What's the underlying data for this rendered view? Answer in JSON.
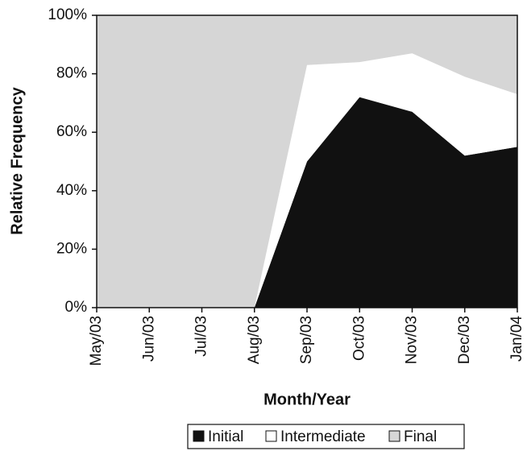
{
  "chart_data": {
    "type": "area",
    "stacked": true,
    "x_label": "Month/Year",
    "y_label": "Relative Frequency",
    "categories": [
      "May/03",
      "Jun/03",
      "Jul/03",
      "Aug/03",
      "Sep/03",
      "Oct/03",
      "Nov/03",
      "Dec/03",
      "Jan/04"
    ],
    "series": [
      {
        "name": "Initial",
        "color": "#111111",
        "values": [
          0,
          0,
          0,
          0,
          50,
          72,
          67,
          52,
          55
        ]
      },
      {
        "name": "Intermediate",
        "color": "#ffffff",
        "values": [
          0,
          0,
          0,
          0,
          33,
          12,
          20,
          27,
          18
        ]
      },
      {
        "name": "Final",
        "color": "#d6d6d6",
        "values": [
          100,
          100,
          100,
          100,
          17,
          16,
          13,
          21,
          27
        ]
      }
    ],
    "ylim": [
      0,
      100
    ],
    "yticks": [
      {
        "value": 0,
        "label": "0%"
      },
      {
        "value": 20,
        "label": "20%"
      },
      {
        "value": 40,
        "label": "40%"
      },
      {
        "value": 60,
        "label": "60%"
      },
      {
        "value": 80,
        "label": "80%"
      },
      {
        "value": 100,
        "label": "100%"
      }
    ],
    "legend": "bottom"
  }
}
